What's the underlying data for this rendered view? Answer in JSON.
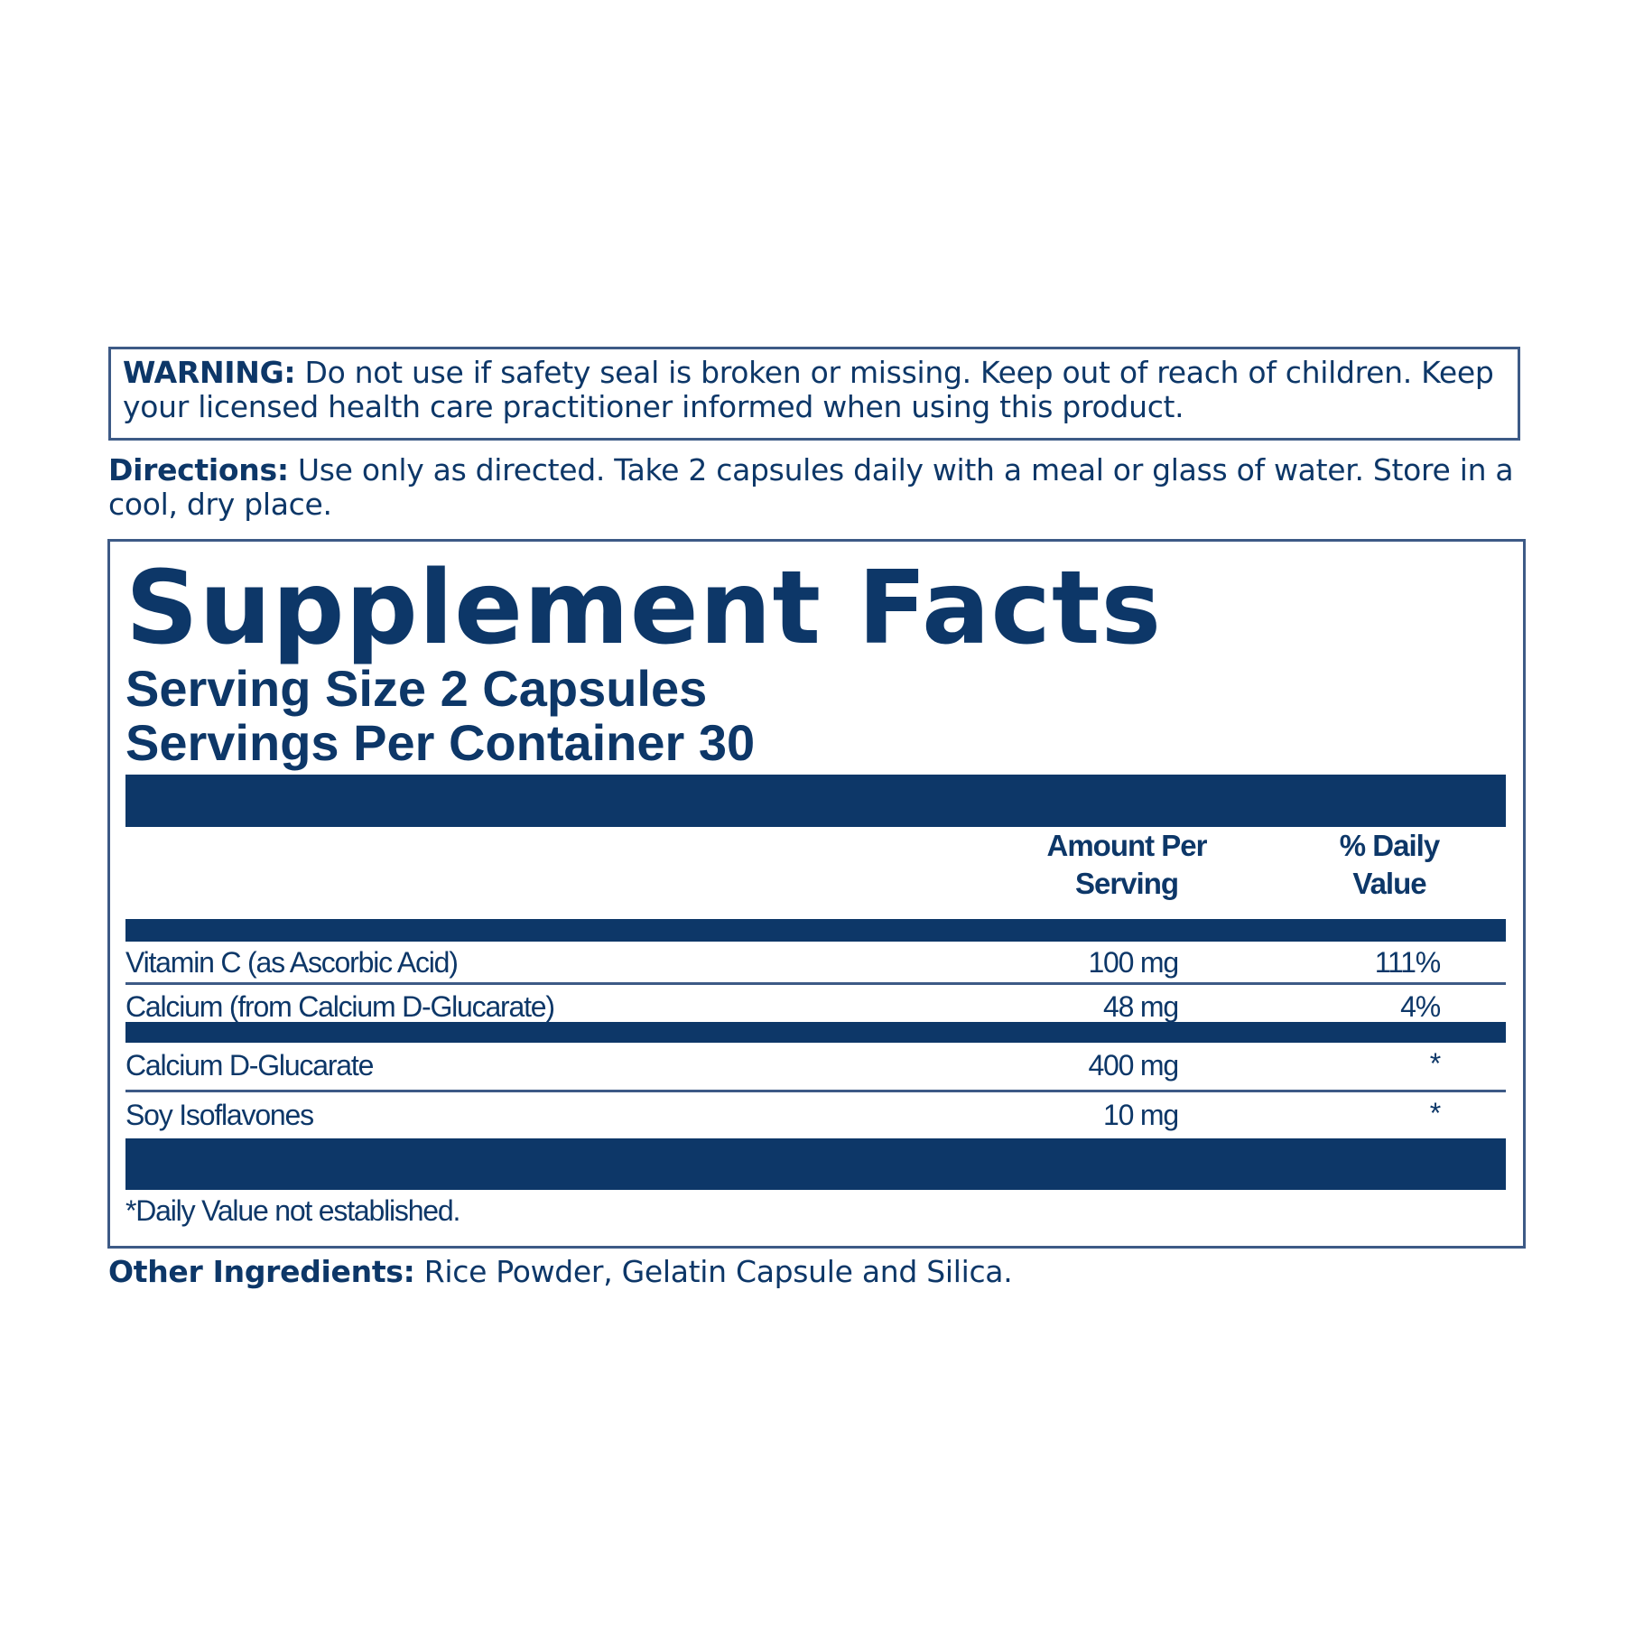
{
  "warning": {
    "label": "WARNING:",
    "text": "Do not use if safety seal is broken or missing. Keep out of reach of children. Keep your licensed health care practitioner informed when using this product."
  },
  "directions": {
    "label": "Directions:",
    "text": "Use only as directed. Take 2 capsules daily with a meal or glass of water. Store in a cool, dry place."
  },
  "supplement_facts": {
    "title": "Supplement Facts",
    "serving_size": "Serving Size 2 Capsules",
    "servings_per_container": "Servings Per Container 30",
    "headers": [
      "Amount Per Serving",
      "% Daily Value"
    ],
    "rows": [
      [
        "Vitamin C (as Ascorbic Acid)",
        "100 mg",
        "111%"
      ],
      [
        "Calcium (from Calcium D-Glucarate)",
        "48 mg",
        "4%"
      ],
      [
        "Calcium D-Glucarate",
        "400 mg",
        "*"
      ],
      [
        "Soy Isoflavones",
        "10 mg",
        "*"
      ]
    ],
    "footnote": "*Daily Value not established."
  },
  "other_ingredients": {
    "label": "Other Ingredients:",
    "text": "Rice Powder, Gelatin Capsule and Silica."
  }
}
